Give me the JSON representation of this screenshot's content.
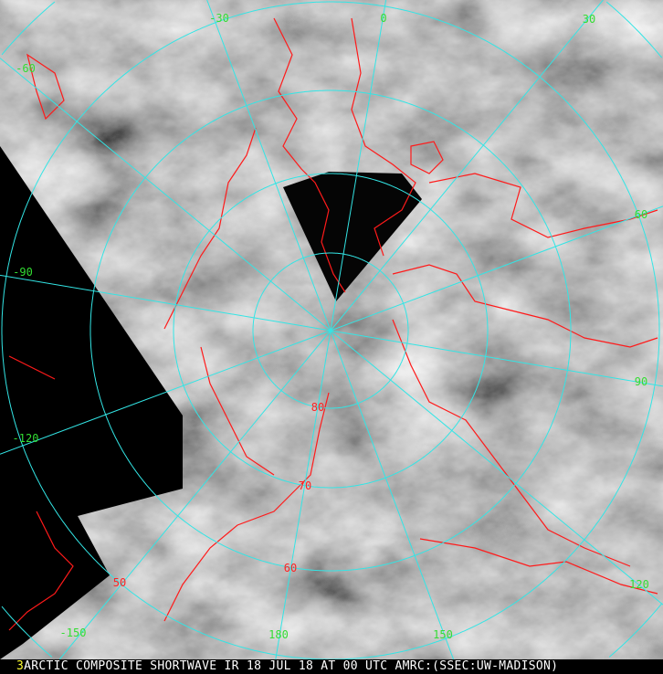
{
  "caption": {
    "frame_number": "3",
    "text": "ARCTIC COMPOSITE SHORTWAVE IR 18 JUL 18 AT 00 UTC AMRC:(SSEC:UW-MADISON)"
  },
  "map": {
    "projection": "polar stereographic, north pole",
    "colors": {
      "graticule": "#33e5e5",
      "coastlines": "#ff1a1a",
      "longitude_labels": "#33dd33",
      "latitude_labels": "#ff2222",
      "no_data": "#000000"
    },
    "latitude_circles": [
      80,
      70,
      60,
      50,
      40
    ],
    "latitude_labels": [
      "80",
      "70",
      "60",
      "50"
    ],
    "longitude_labels": [
      "-30",
      "0",
      "30",
      "60",
      "90",
      "120",
      "150",
      "180",
      "-150",
      "-120",
      "-90",
      "-60"
    ]
  }
}
